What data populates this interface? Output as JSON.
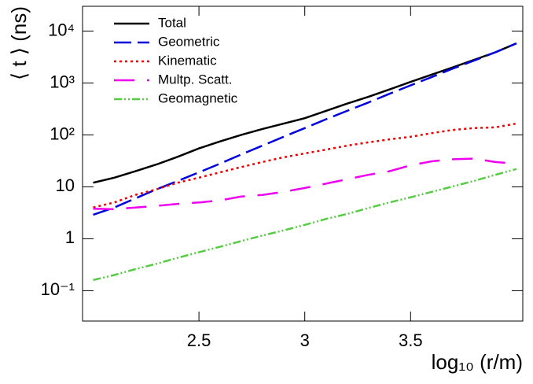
{
  "chart_data": {
    "type": "line",
    "x_label": "log₁₀ (r/m)",
    "y_label": "⟨ t ⟩ (ns)",
    "log_y": true,
    "legend": "top-left",
    "x": [
      2.0,
      2.1,
      2.2,
      2.3,
      2.4,
      2.5,
      2.6,
      2.7,
      2.8,
      2.9,
      3.0,
      3.1,
      3.2,
      3.3,
      3.4,
      3.5,
      3.6,
      3.7,
      3.8,
      3.9,
      4.0
    ],
    "series": [
      {
        "name": "Total",
        "color": "#000000",
        "line_style": "solid",
        "values": [
          12,
          15,
          20,
          27,
          38,
          55,
          75,
          100,
          130,
          165,
          210,
          290,
          400,
          540,
          750,
          1050,
          1450,
          2000,
          2800,
          3900,
          5800
        ]
      },
      {
        "name": "Geometric",
        "color": "#0000dd",
        "line_style": "long-dash",
        "values": [
          2.9,
          4.0,
          6,
          9,
          13,
          19,
          28,
          42,
          62,
          92,
          135,
          200,
          290,
          420,
          620,
          900,
          1300,
          1900,
          2700,
          3900,
          5800
        ]
      },
      {
        "name": "Kinematic",
        "color": "#ee0000",
        "line_style": "dotted",
        "values": [
          4,
          5,
          7,
          9,
          12,
          15,
          19,
          24,
          30,
          37,
          44,
          52,
          62,
          72,
          82,
          92,
          108,
          125,
          135,
          140,
          165
        ]
      },
      {
        "name": "Multp. Scatt.",
        "color": "#ee00ee",
        "line_style": "dash-gap",
        "values": [
          3.8,
          3.7,
          4.0,
          4.3,
          4.7,
          5.0,
          5.5,
          6.5,
          7.0,
          8,
          9.5,
          11.5,
          14,
          17,
          20,
          26,
          31,
          34,
          35,
          30,
          28
        ]
      },
      {
        "name": "Geomagnetic",
        "color": "#55cc44",
        "line_style": "dash-dot-dot",
        "values": [
          0.16,
          0.2,
          0.26,
          0.33,
          0.43,
          0.55,
          0.7,
          0.9,
          1.15,
          1.45,
          1.85,
          2.4,
          3.0,
          3.9,
          5.0,
          6.3,
          8,
          10.2,
          13,
          17,
          22
        ]
      }
    ],
    "xlim": [
      1.95,
      4.03
    ],
    "xticks": [
      2.5,
      3,
      3.5
    ],
    "ylim": [
      0.026,
      30000
    ],
    "yticks": [
      {
        "value": 0.1,
        "label": "10⁻¹"
      },
      1,
      10,
      {
        "value": 100,
        "label": "10²"
      },
      {
        "value": 1000,
        "label": "10³"
      },
      {
        "value": 10000,
        "label": "10⁴"
      }
    ]
  }
}
